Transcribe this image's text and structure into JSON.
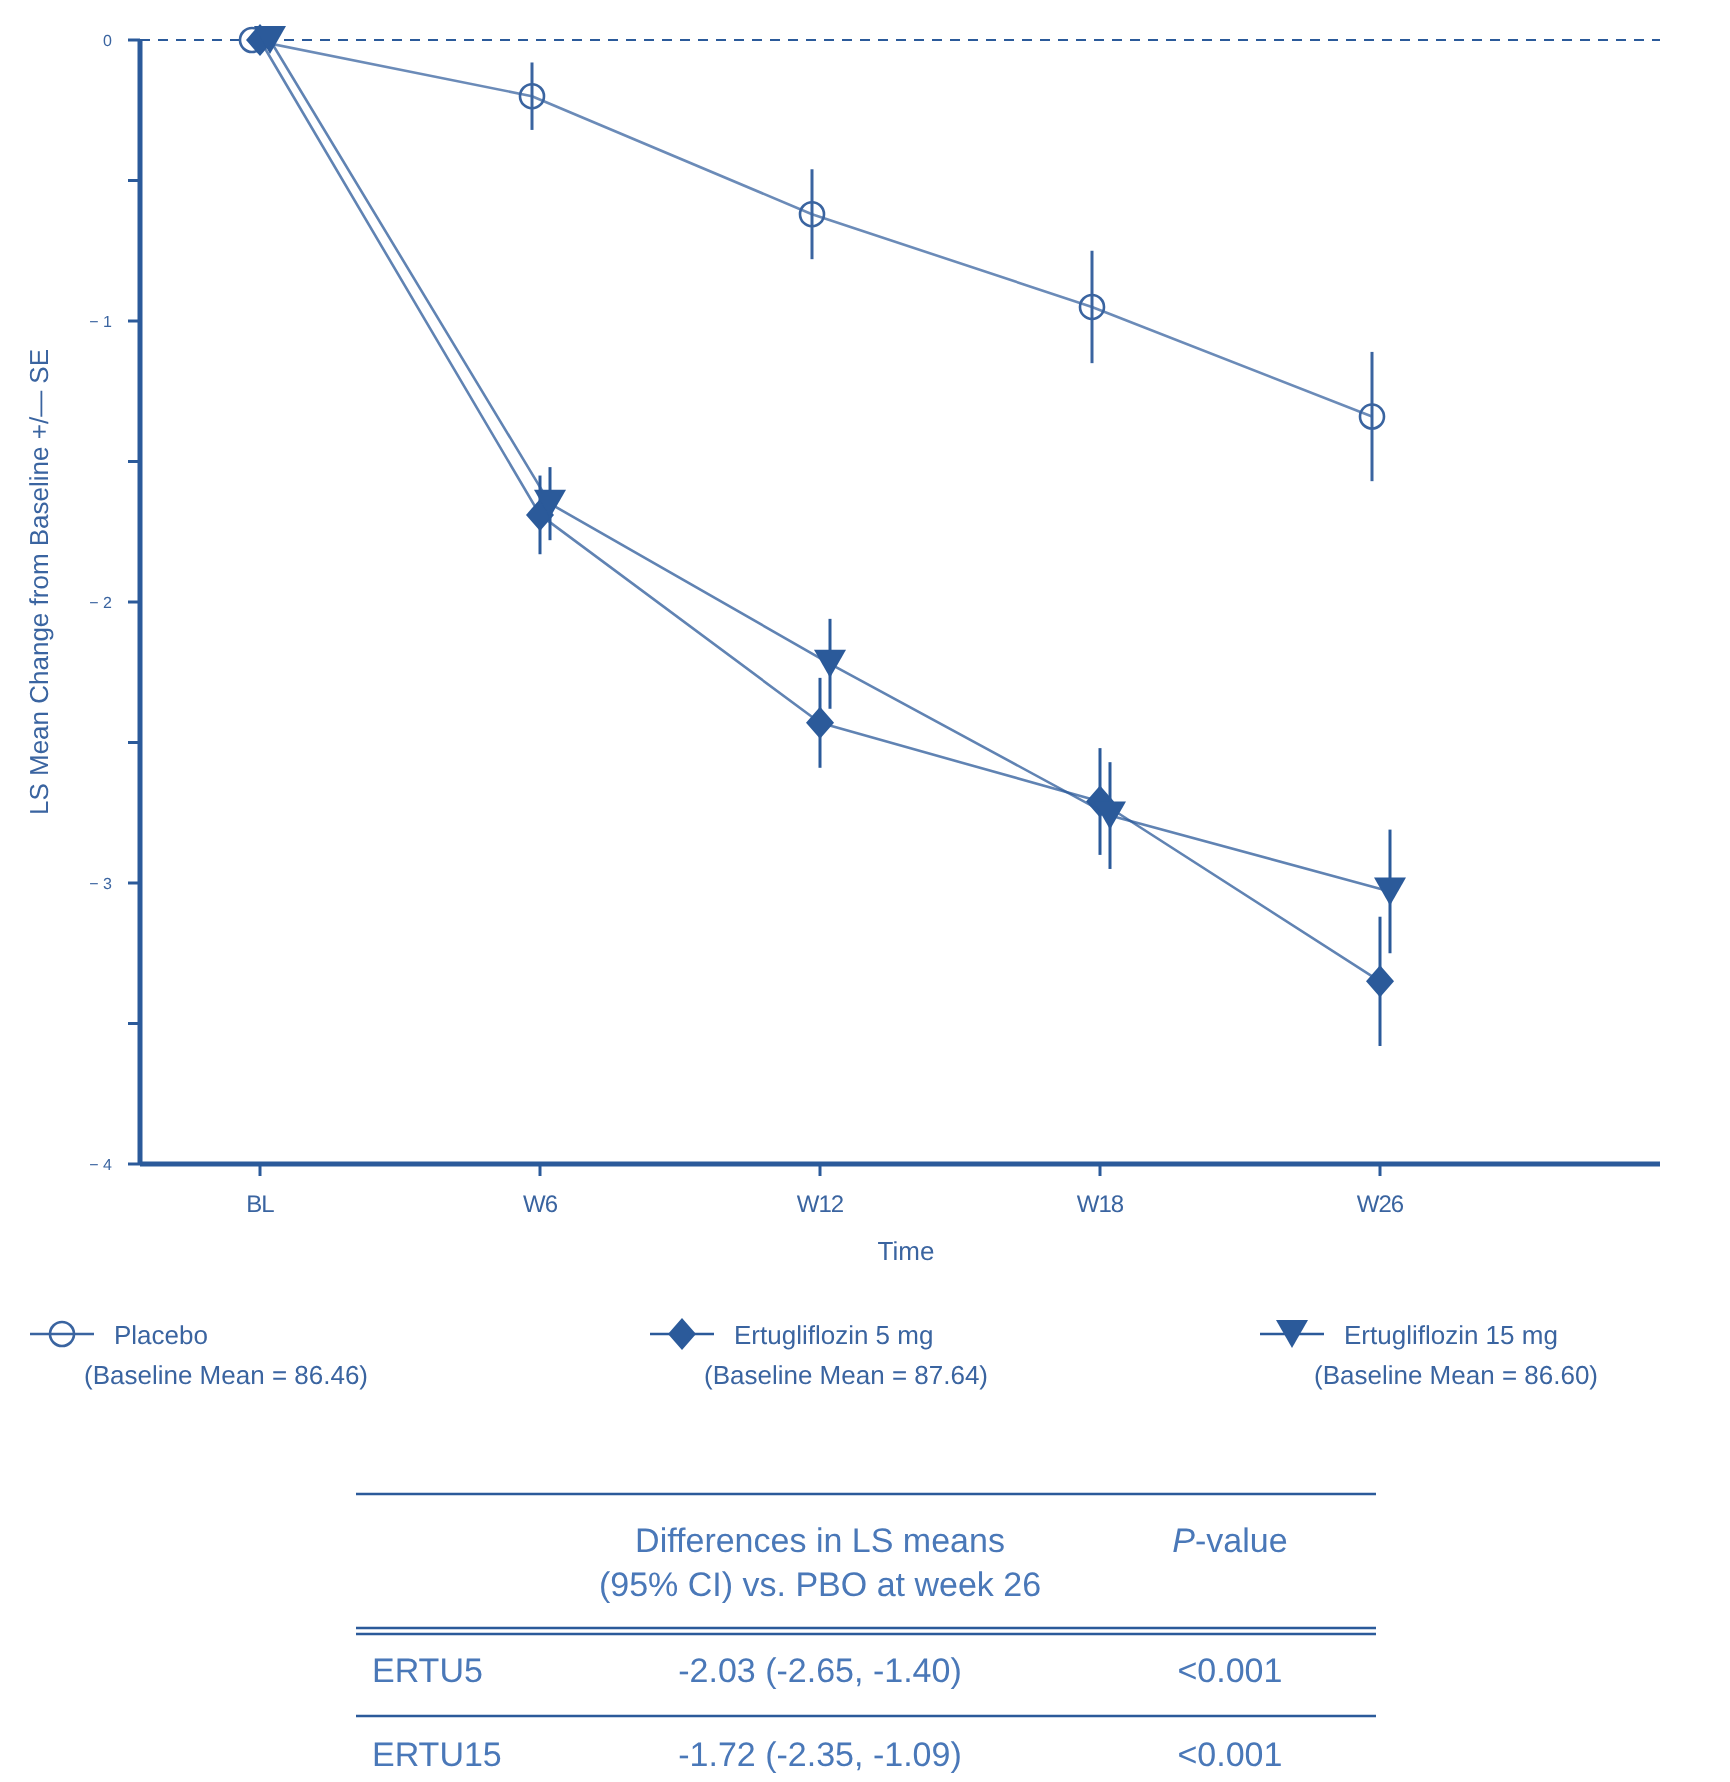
{
  "chart_data": {
    "type": "line",
    "xlabel": "Time",
    "ylabel": "LS Mean Change from Baseline +/— SE",
    "categories": [
      "BL",
      "W6",
      "W12",
      "W18",
      "W26"
    ],
    "ylim": [
      -4,
      0
    ],
    "yticks": [
      0,
      {
        "value": -0.5,
        "label": null
      },
      -1,
      {
        "value": -1.5,
        "label": null
      },
      -2,
      {
        "value": -2.5,
        "label": null
      },
      -3,
      {
        "value": -3.5,
        "label": null
      },
      -4
    ],
    "series": [
      {
        "name": "Placebo",
        "color": "#3a64a0",
        "marker": "circle",
        "values": [
          0,
          -0.2,
          -0.62,
          -0.95,
          -1.34
        ],
        "errors": [
          null,
          0.12,
          0.16,
          0.2,
          0.23
        ]
      },
      {
        "name": "Ertugliflozin 5 mg",
        "color": "#2b5a9a",
        "marker": "diamond",
        "values": [
          0,
          -1.69,
          -2.43,
          -2.71,
          -3.35
        ],
        "errors": [
          null,
          0.14,
          0.16,
          0.19,
          0.23
        ]
      },
      {
        "name": "Ertugliflozin 15 mg",
        "color": "#2b5a9a",
        "marker": "triangle",
        "values": [
          0,
          -1.65,
          -2.22,
          -2.76,
          -3.03
        ],
        "errors": [
          null,
          0.13,
          0.16,
          0.19,
          0.22
        ]
      }
    ],
    "ref_lines": [
      {
        "axis": "y",
        "value": 0,
        "line_style": "dashed",
        "color": "#2b5a9a"
      }
    ],
    "legend": "bottom",
    "annotations": [
      "(Baseline Mean = 86.46)",
      "(Baseline Mean = 87.64)",
      "(Baseline Mean = 86.60)",
      "Differences in LS means (95% CI) vs. PBO at week 26",
      "P-value",
      "ERTU5",
      "-2.03 (-2.65, -1.40)",
      "<0.001",
      "ERTU15",
      "-1.72 (-2.35, -1.09)",
      "<0.001"
    ]
  }
}
